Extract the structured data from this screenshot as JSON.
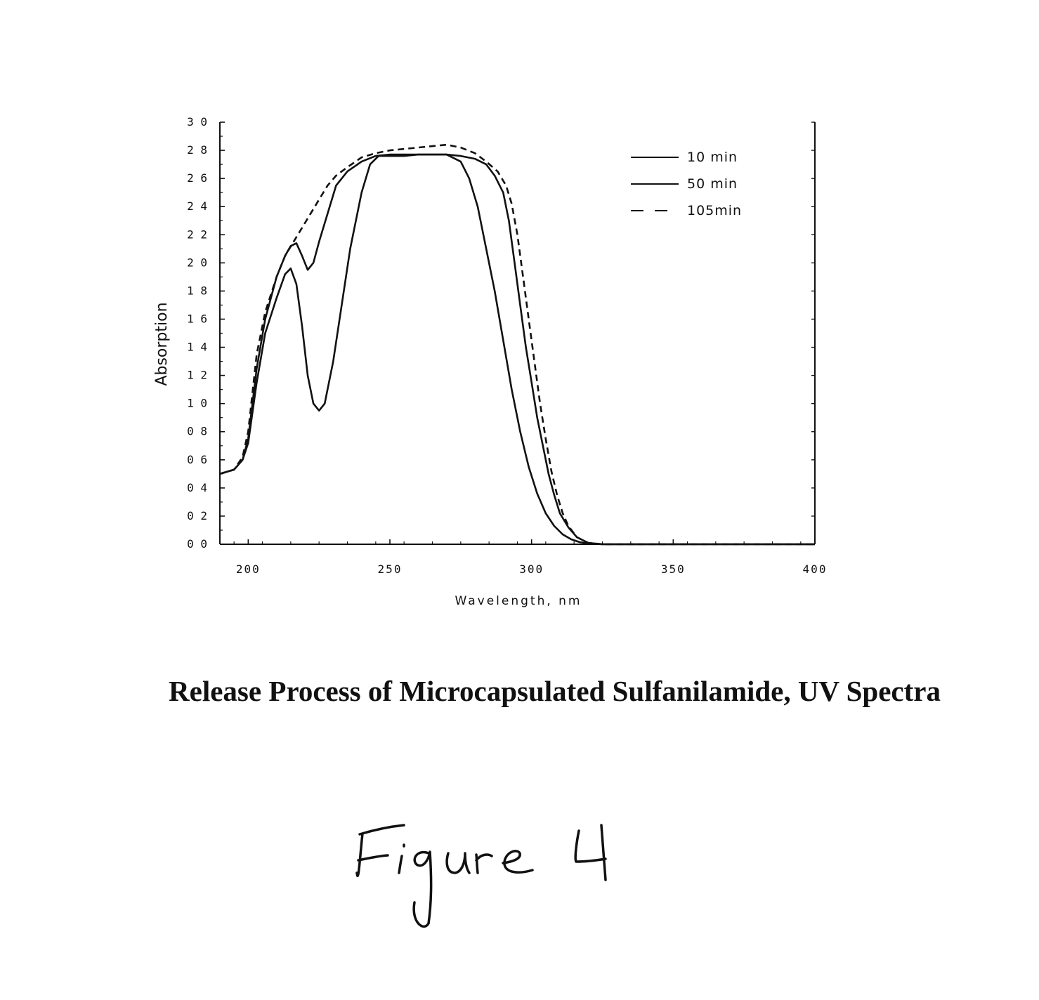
{
  "chart_data": {
    "type": "line",
    "xlabel": "Wavelength, nm",
    "ylabel": "Absorption",
    "xlim": [
      190,
      400
    ],
    "ylim": [
      0,
      3.0
    ],
    "x_ticks": [
      200,
      250,
      300,
      350,
      400
    ],
    "x_tick_labels": [
      "200",
      "250",
      "300",
      "350",
      "400"
    ],
    "y_ticks": [
      0,
      0.2,
      0.4,
      0.6,
      0.8,
      1.0,
      1.2,
      1.4,
      1.6,
      1.8,
      2.0,
      2.2,
      2.4,
      2.6,
      2.8,
      3.0
    ],
    "y_tick_labels": [
      "0 0",
      "0 2",
      "0 4",
      "0 6",
      "0 8",
      "1 0",
      "1 2",
      "1 4",
      "1 6",
      "1 8",
      "2 0",
      "2 2",
      "2 4",
      "2 6",
      "2 8",
      "3 0"
    ],
    "legend_position": "top-right",
    "grid": false,
    "series": [
      {
        "name": "10 min",
        "style": "solid",
        "color": "#111111",
        "x": [
          190,
          195,
          198,
          200,
          203,
          206,
          210,
          213,
          215,
          217,
          219,
          221,
          223,
          225,
          227,
          230,
          233,
          236,
          240,
          243,
          246,
          250,
          255,
          260,
          265,
          270,
          275,
          278,
          281,
          284,
          287,
          290,
          293,
          296,
          299,
          302,
          305,
          308,
          311,
          314,
          317,
          320,
          325,
          330,
          340,
          350,
          360,
          380,
          400
        ],
        "y": [
          0.5,
          0.53,
          0.6,
          0.72,
          1.15,
          1.5,
          1.75,
          1.92,
          1.96,
          1.85,
          1.55,
          1.2,
          1.0,
          0.95,
          1.0,
          1.3,
          1.7,
          2.1,
          2.5,
          2.7,
          2.76,
          2.76,
          2.76,
          2.77,
          2.77,
          2.77,
          2.72,
          2.6,
          2.4,
          2.1,
          1.8,
          1.45,
          1.1,
          0.8,
          0.55,
          0.36,
          0.22,
          0.13,
          0.07,
          0.035,
          0.015,
          0.006,
          0.0,
          0.0,
          0.0,
          0.0,
          0.0,
          0.0,
          0.0
        ]
      },
      {
        "name": "50 min",
        "style": "solid",
        "color": "#111111",
        "x": [
          190,
          195,
          198,
          200,
          203,
          206,
          210,
          213,
          215,
          217,
          219,
          221,
          223,
          225,
          228,
          231,
          235,
          240,
          245,
          250,
          255,
          260,
          265,
          270,
          275,
          280,
          284,
          287,
          290,
          292,
          294,
          296,
          298,
          300,
          302,
          304,
          306,
          308,
          310,
          313,
          316,
          320,
          325,
          330,
          340,
          350,
          360,
          380,
          400
        ],
        "y": [
          0.5,
          0.53,
          0.6,
          0.75,
          1.25,
          1.6,
          1.9,
          2.05,
          2.12,
          2.14,
          2.05,
          1.95,
          2.0,
          2.15,
          2.35,
          2.55,
          2.65,
          2.72,
          2.76,
          2.77,
          2.77,
          2.77,
          2.77,
          2.77,
          2.76,
          2.74,
          2.7,
          2.62,
          2.5,
          2.3,
          2.0,
          1.7,
          1.4,
          1.15,
          0.9,
          0.7,
          0.5,
          0.35,
          0.22,
          0.12,
          0.05,
          0.01,
          0.0,
          0.0,
          0.0,
          0.0,
          0.0,
          0.0,
          0.0
        ]
      },
      {
        "name": "105min",
        "style": "dashed",
        "color": "#111111",
        "x": [
          190,
          195,
          198,
          200,
          203,
          206,
          210,
          213,
          216,
          219,
          222,
          225,
          228,
          231,
          235,
          240,
          245,
          250,
          255,
          260,
          265,
          270,
          275,
          280,
          284,
          288,
          291,
          293,
          295,
          297,
          299,
          301,
          303,
          305,
          307,
          309,
          311,
          313,
          316,
          320,
          325,
          330,
          340,
          350,
          360,
          380,
          400
        ],
        "y": [
          0.5,
          0.53,
          0.62,
          0.8,
          1.35,
          1.65,
          1.9,
          2.05,
          2.15,
          2.25,
          2.35,
          2.45,
          2.55,
          2.62,
          2.68,
          2.75,
          2.78,
          2.8,
          2.81,
          2.82,
          2.83,
          2.84,
          2.82,
          2.78,
          2.72,
          2.65,
          2.55,
          2.42,
          2.2,
          1.9,
          1.6,
          1.3,
          1.0,
          0.75,
          0.52,
          0.35,
          0.22,
          0.13,
          0.05,
          0.01,
          0.0,
          0.0,
          0.0,
          0.0,
          0.0,
          0.0,
          0.0
        ]
      }
    ]
  },
  "caption": "Release Process of Microcapsulated Sulfanilamide, UV Spectra",
  "figure_label": "Figure 4"
}
